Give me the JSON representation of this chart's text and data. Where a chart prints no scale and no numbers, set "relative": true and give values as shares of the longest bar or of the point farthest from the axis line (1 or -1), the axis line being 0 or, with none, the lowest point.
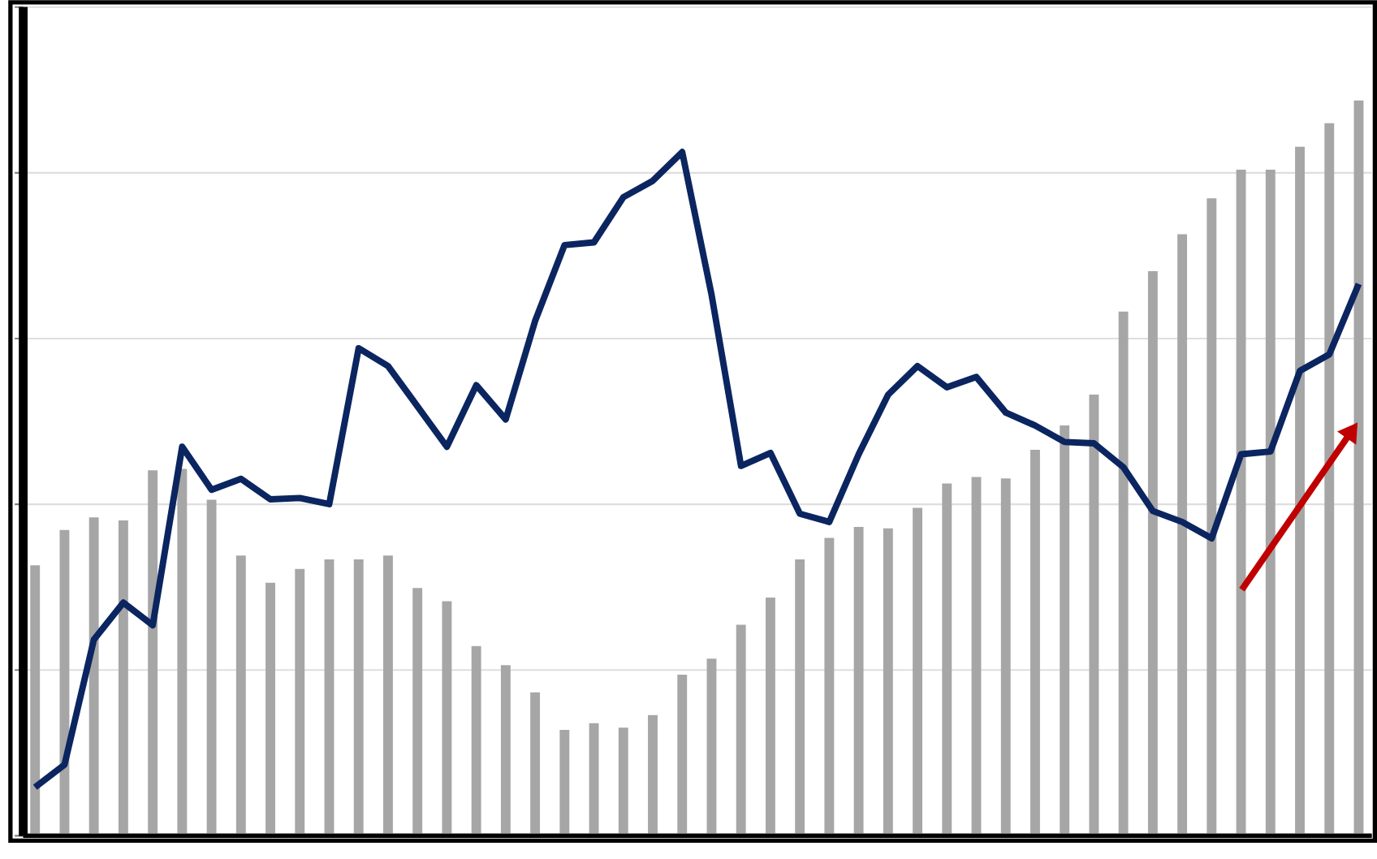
{
  "chart_data": [
    {
      "type": "bar",
      "relative": true,
      "grid": "y",
      "categories": [
        null,
        null,
        null,
        null,
        null,
        null,
        null,
        null,
        null,
        null,
        null,
        null,
        null,
        null,
        null,
        null,
        null,
        null,
        null,
        null,
        null,
        null,
        null,
        null,
        null,
        null,
        null,
        null,
        null,
        null,
        null,
        null,
        null,
        null,
        null,
        null,
        null,
        null,
        null,
        null,
        null,
        null,
        null,
        null,
        null,
        null
      ],
      "series": [
        {
          "color": "#a6a6a6",
          "values": [
            0.368,
            0.416,
            0.433,
            0.429,
            0.497,
            0.499,
            0.457,
            0.381,
            0.344,
            0.363,
            0.376,
            0.376,
            0.381,
            0.337,
            0.319,
            0.258,
            0.232,
            0.195,
            0.144,
            0.153,
            0.147,
            0.164,
            0.219,
            0.241,
            0.287,
            0.324,
            0.376,
            0.405,
            0.42,
            0.418,
            0.446,
            0.479,
            0.488,
            0.486,
            0.525,
            0.558,
            0.6,
            0.713,
            0.768,
            0.818,
            0.867,
            0.906,
            0.906,
            0.937,
            0.969,
            1
          ]
        }
      ]
    },
    {
      "type": "line",
      "relative": true,
      "categories": [
        null,
        null,
        null,
        null,
        null,
        null,
        null,
        null,
        null,
        null,
        null,
        null,
        null,
        null,
        null,
        null,
        null,
        null,
        null,
        null,
        null,
        null,
        null,
        null,
        null,
        null,
        null,
        null,
        null,
        null,
        null,
        null,
        null,
        null,
        null,
        null,
        null,
        null,
        null,
        null,
        null,
        null,
        null,
        null,
        null,
        null
      ],
      "series": [
        {
          "color": "#0b2560",
          "values": [
            0.071,
            0.104,
            0.287,
            0.341,
            0.308,
            0.569,
            0.506,
            0.522,
            0.492,
            0.494,
            0.485,
            0.713,
            0.687,
            0.628,
            0.569,
            0.659,
            0.609,
            0.753,
            0.864,
            0.868,
            0.934,
            0.958,
            1,
            0.791,
            0.541,
            0.56,
            0.471,
            0.459,
            0.558,
            0.645,
            0.687,
            0.656,
            0.671,
            0.619,
            0.6,
            0.576,
            0.574,
            0.539,
            0.475,
            0.459,
            0.435,
            0.558,
            0.562,
            0.68,
            0.704,
            0.807
          ]
        }
      ]
    }
  ]
}
